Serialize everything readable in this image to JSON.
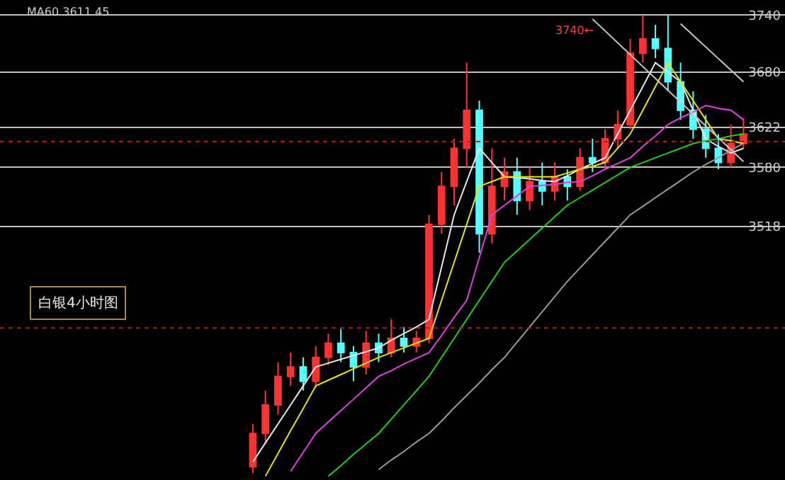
{
  "chart_data": {
    "type": "candlestick",
    "categories": [
      null,
      null,
      null,
      null,
      null,
      null,
      null,
      null,
      null,
      null,
      null,
      null,
      null,
      null,
      null,
      null,
      null,
      null,
      null,
      null,
      null,
      null,
      null,
      null,
      null,
      null,
      null,
      null,
      null,
      null,
      null,
      null,
      null,
      null,
      null,
      null,
      null,
      null,
      null,
      null
    ],
    "ohlc": [
      [
        3265,
        3310,
        3258,
        3300
      ],
      [
        3300,
        3345,
        3290,
        3330
      ],
      [
        3330,
        3375,
        3320,
        3360
      ],
      [
        3360,
        3385,
        3350,
        3370
      ],
      [
        3370,
        3380,
        3345,
        3355
      ],
      [
        3355,
        3392,
        3348,
        3380
      ],
      [
        3380,
        3405,
        3372,
        3395
      ],
      [
        3395,
        3410,
        3375,
        3385
      ],
      [
        3385,
        3392,
        3355,
        3370
      ],
      [
        3370,
        3408,
        3362,
        3395
      ],
      [
        3395,
        3405,
        3375,
        3385
      ],
      [
        3385,
        3420,
        3380,
        3400
      ],
      [
        3400,
        3412,
        3385,
        3392
      ],
      [
        3392,
        3408,
        3385,
        3400
      ],
      [
        3400,
        3530,
        3395,
        3520
      ],
      [
        3520,
        3575,
        3510,
        3560
      ],
      [
        3560,
        3610,
        3540,
        3600
      ],
      [
        3600,
        3690,
        3580,
        3640
      ],
      [
        3640,
        3650,
        3490,
        3510
      ],
      [
        3510,
        3600,
        3500,
        3560
      ],
      [
        3560,
        3590,
        3545,
        3575
      ],
      [
        3575,
        3590,
        3530,
        3545
      ],
      [
        3545,
        3580,
        3535,
        3565
      ],
      [
        3565,
        3585,
        3540,
        3555
      ],
      [
        3555,
        3585,
        3545,
        3570
      ],
      [
        3570,
        3578,
        3545,
        3560
      ],
      [
        3560,
        3600,
        3555,
        3590
      ],
      [
        3590,
        3610,
        3575,
        3585
      ],
      [
        3585,
        3620,
        3578,
        3610
      ],
      [
        3610,
        3640,
        3600,
        3625
      ],
      [
        3625,
        3715,
        3620,
        3700
      ],
      [
        3700,
        3740,
        3690,
        3715
      ],
      [
        3715,
        3730,
        3695,
        3705
      ],
      [
        3705,
        3740,
        3660,
        3670
      ],
      [
        3670,
        3690,
        3630,
        3640
      ],
      [
        3640,
        3660,
        3610,
        3620
      ],
      [
        3620,
        3635,
        3590,
        3600
      ],
      [
        3600,
        3615,
        3578,
        3585
      ],
      [
        3585,
        3625,
        3580,
        3605
      ],
      [
        3605,
        3632,
        3600,
        3615
      ]
    ],
    "colors": [
      "#ff3232",
      "#ff3232",
      "#ff3232",
      "#ff3232",
      "#54ffff",
      "#ff3232",
      "#ff3232",
      "#54ffff",
      "#54ffff",
      "#ff3232",
      "#54ffff",
      "#ff3232",
      "#54ffff",
      "#ff3232",
      "#ff3232",
      "#ff3232",
      "#ff3232",
      "#ff3232",
      "#54ffff",
      "#ff3232",
      "#ff3232",
      "#54ffff",
      "#ff3232",
      "#54ffff",
      "#ff3232",
      "#54ffff",
      "#ff3232",
      "#54ffff",
      "#ff3232",
      "#ff3232",
      "#ff3232",
      "#ff3232",
      "#54ffff",
      "#54ffff",
      "#54ffff",
      "#54ffff",
      "#54ffff",
      "#54ffff",
      "#ff3232",
      "#ff3232"
    ],
    "series": [
      {
        "type": "line",
        "color": "#e8e8e8",
        "values": [
          3270,
          3290,
          3310,
          3330,
          3350,
          3370,
          3374,
          3378,
          3382,
          3386,
          3390,
          3398,
          3405,
          3412,
          3420,
          3475,
          3530,
          3565,
          3600,
          3585,
          3570,
          3569,
          3568,
          3566,
          3565,
          3571,
          3578,
          3584,
          3590,
          3615,
          3640,
          3665,
          3690,
          3680,
          3670,
          3640,
          3610,
          3602,
          3595,
          3600
        ]
      },
      {
        "type": "line",
        "color": "#e6e600",
        "values": [
          null,
          3255,
          3279,
          3303,
          3326,
          3350,
          3356,
          3362,
          3368,
          3374,
          3380,
          3385,
          3390,
          3395,
          3400,
          3440,
          3480,
          3520,
          3560,
          3565,
          3570,
          3570,
          3570,
          3570,
          3570,
          3574,
          3578,
          3581,
          3585,
          3600,
          3615,
          3640,
          3665,
          3690,
          3670,
          3650,
          3630,
          3610,
          3608,
          3605
        ]
      },
      {
        "type": "line",
        "color": "#e040e0",
        "values": [
          null,
          null,
          null,
          3260,
          3280,
          3300,
          3312,
          3324,
          3336,
          3348,
          3360,
          3366,
          3373,
          3379,
          3385,
          3403,
          3422,
          3440,
          3485,
          3530,
          3540,
          3550,
          3560,
          3561,
          3562,
          3564,
          3565,
          3571,
          3578,
          3584,
          3590,
          3602,
          3613,
          3625,
          3632,
          3638,
          3645,
          3642,
          3640,
          3630
        ]
      },
      {
        "type": "line",
        "color": "#22cc22",
        "values": [
          null,
          null,
          null,
          null,
          null,
          null,
          3255,
          3266,
          3278,
          3289,
          3300,
          3315,
          3330,
          3345,
          3360,
          3380,
          3400,
          3420,
          3440,
          3460,
          3480,
          3492,
          3504,
          3516,
          3528,
          3540,
          3548,
          3556,
          3564,
          3572,
          3580,
          3585,
          3590,
          3595,
          3600,
          3605,
          3608,
          3610,
          3613,
          3615
        ]
      },
      {
        "type": "line",
        "color": "#9a9a9a",
        "values": [
          null,
          null,
          null,
          null,
          null,
          null,
          null,
          null,
          null,
          null,
          3262,
          3272,
          3281,
          3291,
          3300,
          3313,
          3327,
          3340,
          3353,
          3367,
          3380,
          3396,
          3412,
          3428,
          3444,
          3460,
          3474,
          3488,
          3502,
          3516,
          3530,
          3539,
          3548,
          3557,
          3566,
          3575,
          3583,
          3590,
          3598,
          3605
        ]
      },
      {
        "type": "line",
        "color": "#c8c8c8",
        "values": [
          null,
          null,
          null,
          null,
          null,
          null,
          null,
          null,
          null,
          null,
          null,
          null,
          null,
          null,
          null,
          null,
          null,
          null,
          null,
          null,
          null,
          null,
          null,
          null,
          null,
          null,
          null,
          3736,
          null,
          null,
          null,
          null,
          null,
          null,
          null,
          null,
          null,
          null,
          null,
          3586
        ]
      },
      {
        "type": "line",
        "color": "#c8c8c8",
        "values": [
          null,
          null,
          null,
          null,
          null,
          null,
          null,
          null,
          null,
          null,
          null,
          null,
          null,
          null,
          null,
          null,
          null,
          null,
          null,
          null,
          null,
          null,
          null,
          null,
          null,
          null,
          null,
          null,
          null,
          null,
          null,
          null,
          null,
          null,
          3731,
          null,
          null,
          null,
          null,
          3670
        ]
      }
    ],
    "ylim": [
      3251,
      3756
    ],
    "yticks": [
      3518,
      3580,
      3622,
      3680,
      3740
    ],
    "tick_labels": "y",
    "grid": "y",
    "ref_lines": [
      {
        "axis": "y",
        "value": 3607,
        "color": "#aa2020",
        "line_style": "dotted"
      },
      {
        "axis": "y",
        "value": 3411,
        "color": "#aa2020",
        "line_style": "dotted"
      }
    ],
    "annotations": [
      "MA60 3611.45",
      "白银4小时图",
      "3740←"
    ]
  }
}
